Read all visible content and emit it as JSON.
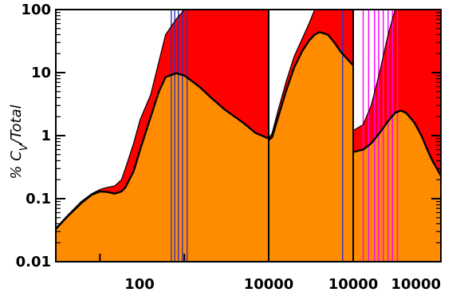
{
  "chart_data": {
    "type": "area",
    "title": "",
    "ylabel": "% C_V/Total",
    "ylabel_parts": {
      "prefix": "% C",
      "sub": "V",
      "suffix": "/Total"
    },
    "xlabel": "",
    "yscale": "log",
    "ylim": [
      0.01,
      100
    ],
    "grid": false,
    "y_ticks": [
      {
        "value": 0.01,
        "label": "0.01"
      },
      {
        "value": 0.1,
        "label": "0.1"
      },
      {
        "value": 1,
        "label": "1"
      },
      {
        "value": 10,
        "label": "10"
      },
      {
        "value": 100,
        "label": "100"
      }
    ],
    "x_ticks": [
      {
        "label": "100"
      },
      {
        "label": "10000"
      },
      {
        "label": "10000"
      },
      {
        "label": "10000"
      }
    ],
    "colors": {
      "orange": "#ff8c00",
      "red": "#ff0000",
      "magenta": "#ff00ff",
      "blue": "#3030c0",
      "frame": "#000000"
    },
    "panels": [
      {
        "xscale": "log",
        "xlim": [
          30,
          10000
        ],
        "series": [
          {
            "name": "",
            "fill": "orange",
            "x": [
              30,
              40,
              60,
              80,
              100,
              120,
              150,
              180,
              200,
              250,
              300,
              400,
              500,
              600,
              800,
              1000,
              1500,
              2000,
              3000,
              5000,
              7000,
              10000
            ],
            "y": [
              0.033,
              0.05,
              0.085,
              0.115,
              0.13,
              0.128,
              0.12,
              0.13,
              0.15,
              0.27,
              0.6,
              2.0,
              5.0,
              8.5,
              9.8,
              9.0,
              6.0,
              4.2,
              2.6,
              1.6,
              1.1,
              0.9
            ]
          },
          {
            "name": "",
            "fill": "red",
            "x": [
              30,
              40,
              60,
              80,
              100,
              120,
              150,
              180,
              200,
              250,
              300,
              400,
              500,
              600,
              800,
              1000,
              1500,
              2000,
              3000,
              5000,
              7000,
              10000
            ],
            "y": [
              0.034,
              0.052,
              0.09,
              0.12,
              0.14,
              0.15,
              0.16,
              0.2,
              0.3,
              0.75,
              1.8,
              4.5,
              15,
              40,
              70,
              100,
              100,
              100,
              100,
              100,
              100,
              100
            ]
          }
        ],
        "vlines": [
          {
            "x": 700,
            "color": "blue"
          },
          {
            "x": 770,
            "color": "blue"
          },
          {
            "x": 850,
            "color": "blue"
          },
          {
            "x": 950,
            "color": "blue"
          },
          {
            "x": 1080,
            "color": "blue"
          }
        ]
      },
      {
        "xscale": "log",
        "xlim": [
          1000,
          10000
        ],
        "series": [
          {
            "name": "",
            "fill": "orange",
            "x": [
              1000,
              1100,
              1300,
              1600,
              2000,
              2500,
              3000,
              3500,
              4000,
              5000,
              6000,
              7000,
              8000,
              10000
            ],
            "y": [
              0.85,
              0.95,
              2.0,
              5.0,
              12,
              22,
              32,
              40,
              44,
              40,
              30,
              22,
              18,
              13
            ]
          },
          {
            "name": "",
            "fill": "red",
            "x": [
              1000,
              1100,
              1300,
              1600,
              2000,
              2500,
              3000,
              3500,
              4000,
              5000,
              6000,
              7000,
              8000,
              10000
            ],
            "y": [
              0.9,
              1.1,
              2.6,
              7.0,
              18,
              35,
              60,
              100,
              100,
              100,
              100,
              100,
              100,
              100
            ]
          }
        ],
        "vlines": [
          {
            "x": 7500,
            "color": "blue"
          }
        ]
      },
      {
        "xscale": "log",
        "xlim": [
          1000,
          10000
        ],
        "series": [
          {
            "name": "",
            "fill": "orange",
            "x": [
              1000,
              1300,
              1600,
              2000,
              2500,
              3000,
              3500,
              4000,
              5000,
              6000,
              7000,
              8000,
              9000,
              10000
            ],
            "y": [
              0.55,
              0.6,
              0.75,
              1.1,
              1.7,
              2.3,
              2.5,
              2.3,
              1.6,
              1.0,
              0.6,
              0.4,
              0.3,
              0.23
            ]
          },
          {
            "name": "",
            "fill": "red",
            "x": [
              1000,
              1300,
              1600,
              2000,
              2500,
              3000,
              10000
            ],
            "y": [
              1.2,
              1.5,
              3,
              10,
              40,
              100,
              100
            ]
          }
        ],
        "vlines": [
          {
            "x": 1300,
            "color": "magenta"
          },
          {
            "x": 1500,
            "color": "magenta"
          },
          {
            "x": 1750,
            "color": "magenta"
          },
          {
            "x": 1950,
            "color": "magenta"
          },
          {
            "x": 2200,
            "color": "magenta"
          },
          {
            "x": 2500,
            "color": "magenta"
          },
          {
            "x": 2800,
            "color": "magenta"
          },
          {
            "x": 3200,
            "color": "magenta"
          }
        ]
      }
    ]
  }
}
